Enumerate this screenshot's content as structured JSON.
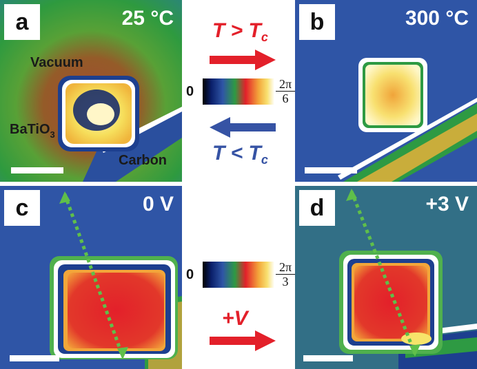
{
  "panels": {
    "a": {
      "label": "a",
      "condition": "25 °C",
      "annotations": {
        "vacuum": "Vacuum",
        "batio": "BaTiO",
        "batio_sub": "3",
        "carbon": "Carbon"
      }
    },
    "b": {
      "label": "b",
      "condition": "300 °C"
    },
    "c": {
      "label": "c",
      "condition": "0 V"
    },
    "d": {
      "label": "d",
      "condition": "+3 V"
    }
  },
  "middle": {
    "top_arrow": {
      "text": "T > T",
      "sub": "c",
      "color": "#e3202a",
      "direction": "right"
    },
    "bottom_arrow": {
      "text": "T < T",
      "sub": "c",
      "color": "#3653a4",
      "direction": "left"
    },
    "colorbar_1": {
      "min": "0",
      "max_num": "2π",
      "max_den": "6"
    },
    "colorbar_2": {
      "min": "0",
      "max_num": "2π",
      "max_den": "3"
    },
    "voltage_arrow": {
      "text": "+V",
      "color": "#e3202a",
      "direction": "right"
    }
  },
  "colors": {
    "map_background": "#2f55a6",
    "hot": "#e9232b",
    "warm": "#f3d75a",
    "green": "#3cae4f",
    "trace": "#5fbf4a"
  }
}
